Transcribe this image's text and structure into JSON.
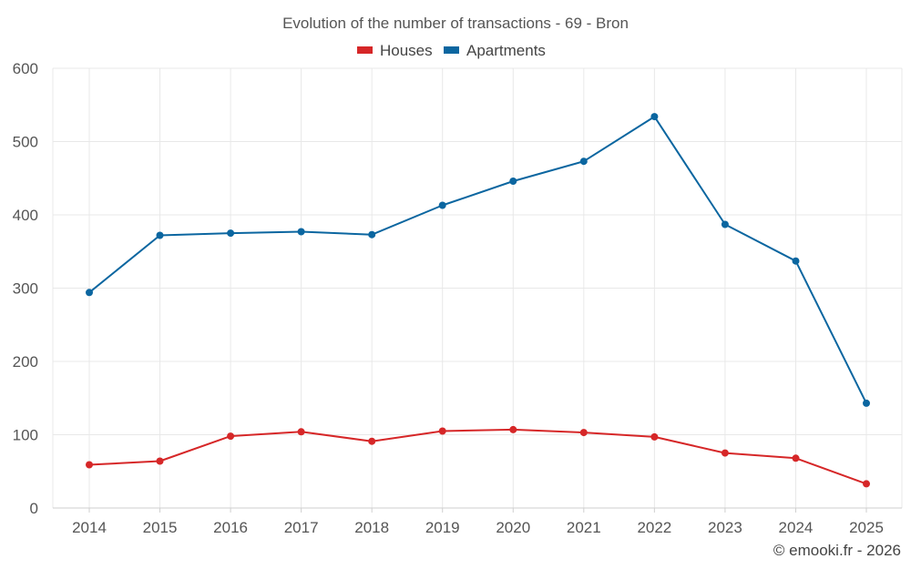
{
  "chart_data": {
    "type": "line",
    "title": "Evolution of the number of transactions - 69 - Bron",
    "categories": [
      "2014",
      "2015",
      "2016",
      "2017",
      "2018",
      "2019",
      "2020",
      "2021",
      "2022",
      "2023",
      "2024",
      "2025"
    ],
    "series": [
      {
        "name": "Houses",
        "color": "#d62728",
        "values": [
          59,
          64,
          98,
          104,
          91,
          105,
          107,
          103,
          97,
          75,
          68,
          33
        ]
      },
      {
        "name": "Apartments",
        "color": "#0b66a0",
        "values": [
          294,
          372,
          375,
          377,
          373,
          413,
          446,
          473,
          534,
          387,
          337,
          143
        ]
      }
    ],
    "ylim": [
      0,
      600
    ],
    "yticks": [
      0,
      100,
      200,
      300,
      400,
      500,
      600
    ],
    "xlabel": "",
    "ylabel": "",
    "grid": true,
    "legend": "top-center"
  },
  "credit": "© emooki.fr - 2026"
}
